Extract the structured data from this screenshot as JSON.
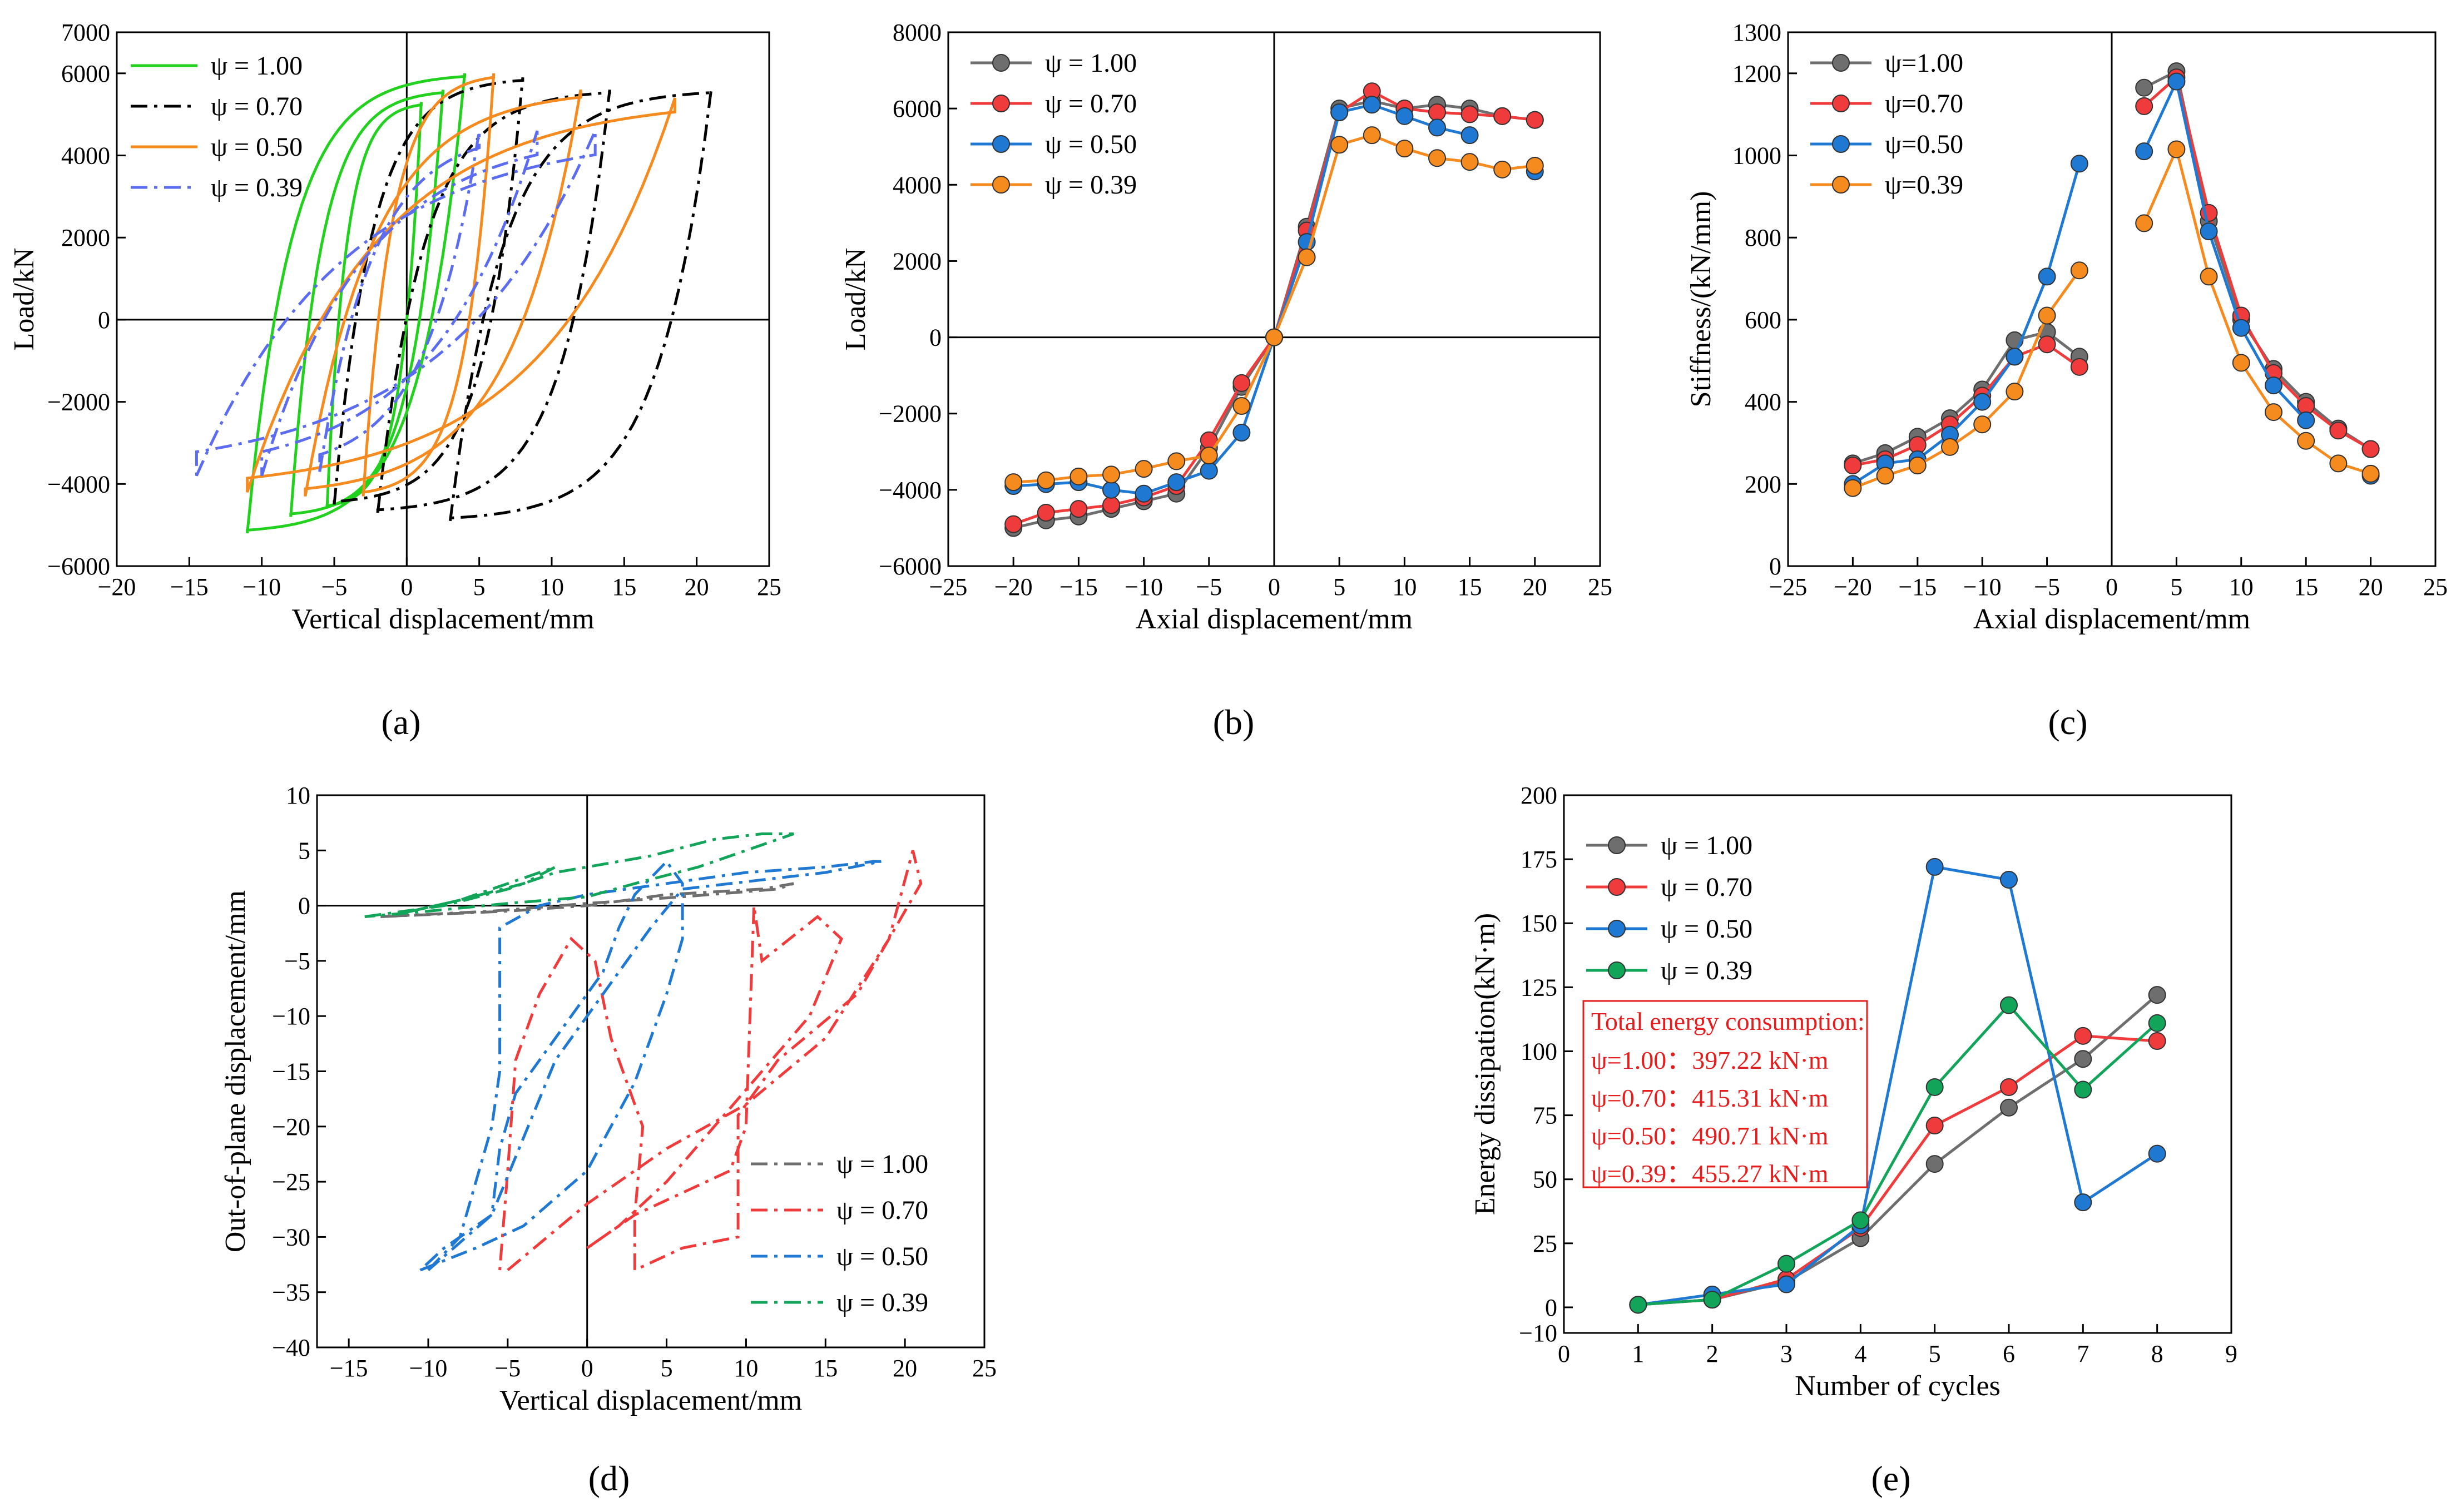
{
  "figure": {
    "panels": [
      "(a)",
      "(b)",
      "(c)",
      "(d)",
      "(e)"
    ]
  },
  "chart_data": [
    {
      "id": "a",
      "caption": "(a)",
      "type": "line",
      "title": "",
      "xlabel": "Vertical displacement/mm",
      "ylabel": "Load/kN",
      "xlim": [
        -20,
        25
      ],
      "ylim": [
        -6000,
        7000
      ],
      "xticks": [
        -20,
        -15,
        -10,
        -5,
        0,
        5,
        10,
        15,
        20,
        25
      ],
      "yticks": [
        -6000,
        -4000,
        -2000,
        0,
        2000,
        4000,
        6000,
        7000
      ],
      "legend_position": "top-left",
      "series": [
        {
          "name": "ψ = 1.00",
          "color": "#22d11e",
          "dash": "solid",
          "loops": [
            {
              "peak": 4.0,
              "pmax": 6000,
              "valley": -11.0,
              "pmin": -5200,
              "k": 1500
            },
            {
              "peak": 2.5,
              "pmax": 5600,
              "valley": -8.0,
              "pmin": -4800,
              "k": 1500
            },
            {
              "peak": 1.0,
              "pmax": 5300,
              "valley": -5.5,
              "pmin": -4600,
              "k": 1500
            }
          ]
        },
        {
          "name": "ψ = 0.70",
          "color": "#000000",
          "dash": "dashdot",
          "loops": [
            {
              "peak": 21.0,
              "pmax": 5600,
              "valley": 3.0,
              "pmin": -4900,
              "k": 1500
            },
            {
              "peak": 14.0,
              "pmax": 5600,
              "valley": -2.0,
              "pmin": -4700,
              "k": 1500
            },
            {
              "peak": 8.0,
              "pmax": 5900,
              "valley": -5.0,
              "pmin": -4500,
              "k": 1500
            }
          ]
        },
        {
          "name": "ψ = 0.50",
          "color": "#f58a1f",
          "dash": "solid",
          "loops": [
            {
              "peak": 18.5,
              "pmax": 5400,
              "valley": -11.0,
              "pmin": -4200,
              "k": 1000
            },
            {
              "peak": 12.0,
              "pmax": 5600,
              "valley": -7.0,
              "pmin": -4300,
              "k": 1200
            },
            {
              "peak": 6.0,
              "pmax": 6000,
              "valley": -3.0,
              "pmin": -4300,
              "k": 1400
            }
          ]
        },
        {
          "name": "ψ = 0.39",
          "color": "#5b6cf0",
          "dash": "dashdot",
          "loops": [
            {
              "peak": 13.0,
              "pmax": 4600,
              "valley": -14.5,
              "pmin": -3800,
              "k": 800
            },
            {
              "peak": 9.0,
              "pmax": 4600,
              "valley": -10.0,
              "pmin": -3800,
              "k": 800
            },
            {
              "peak": 5.0,
              "pmax": 4600,
              "valley": -6.0,
              "pmin": -3700,
              "k": 900
            }
          ]
        }
      ]
    },
    {
      "id": "b",
      "caption": "(b)",
      "type": "line",
      "title": "",
      "xlabel": "Axial displacement/mm",
      "ylabel": "Load/kN",
      "xlim": [
        -25,
        25
      ],
      "ylim": [
        -6000,
        8000
      ],
      "xticks": [
        -25,
        -20,
        -15,
        -10,
        -5,
        0,
        5,
        10,
        15,
        20,
        25
      ],
      "yticks": [
        -6000,
        -4000,
        -2000,
        0,
        2000,
        4000,
        6000,
        8000
      ],
      "legend_position": "top-left",
      "x": [
        -20,
        -17.5,
        -15,
        -12.5,
        -10,
        -7.5,
        -5,
        -2.5,
        0,
        2.5,
        5,
        7.5,
        10,
        12.5,
        15,
        17.5,
        20
      ],
      "series": [
        {
          "name": "ψ = 1.00",
          "color": "#6e6e6e",
          "values": [
            -5000,
            -4800,
            -4700,
            -4500,
            -4300,
            -4100,
            -2900,
            -1300,
            0,
            2900,
            6000,
            6200,
            6000,
            6100,
            6000,
            5800,
            5700
          ]
        },
        {
          "name": "ψ = 0.70",
          "color": "#ef3b3b",
          "values": [
            -4900,
            -4600,
            -4500,
            -4400,
            -4200,
            -3900,
            -2700,
            -1200,
            0,
            2800,
            5900,
            6450,
            6000,
            5900,
            5850,
            5800,
            5700
          ]
        },
        {
          "name": "ψ = 0.50",
          "color": "#1f78d1",
          "values": [
            -3900,
            -3850,
            -3800,
            -4000,
            -4100,
            -3800,
            -3500,
            -2500,
            0,
            2500,
            5900,
            6100,
            5800,
            5500,
            5300,
            null,
            4350
          ]
        },
        {
          "name": "ψ = 0.39",
          "color": "#f58a1f",
          "values": [
            -3800,
            -3750,
            -3650,
            -3600,
            -3450,
            -3250,
            -3100,
            -1800,
            0,
            2100,
            5050,
            5300,
            4950,
            4700,
            4600,
            4400,
            4500
          ]
        }
      ]
    },
    {
      "id": "c",
      "caption": "(c)",
      "type": "line",
      "title": "",
      "xlabel": "Axial displacement/mm",
      "ylabel": "Stiffness/(kN/mm)",
      "xlim": [
        -25,
        25
      ],
      "ylim": [
        0,
        1300
      ],
      "xticks": [
        -25,
        -20,
        -15,
        -10,
        -5,
        0,
        5,
        10,
        15,
        20,
        25
      ],
      "yticks": [
        0,
        200,
        400,
        600,
        800,
        1000,
        1200,
        1300
      ],
      "legend_position": "top-left",
      "x": [
        -20,
        -17.5,
        -15,
        -12.5,
        -10,
        -7.5,
        -5,
        -2.5,
        2.5,
        5,
        7.5,
        10,
        12.5,
        15,
        17.5,
        20
      ],
      "series": [
        {
          "name": "ψ=1.00",
          "color": "#6e6e6e",
          "values": [
            250,
            275,
            315,
            360,
            430,
            550,
            570,
            510,
            1165,
            1205,
            840,
            600,
            480,
            400,
            335,
            285
          ]
        },
        {
          "name": "ψ=0.70",
          "color": "#ef3b3b",
          "values": [
            245,
            260,
            295,
            345,
            415,
            510,
            540,
            485,
            1120,
            1190,
            860,
            610,
            470,
            390,
            330,
            285
          ]
        },
        {
          "name": "ψ=0.50",
          "color": "#1f78d1",
          "values": [
            200,
            250,
            260,
            320,
            400,
            510,
            705,
            980,
            1010,
            1180,
            815,
            580,
            440,
            355,
            null,
            220
          ]
        },
        {
          "name": "ψ=0.39",
          "color": "#f58a1f",
          "values": [
            190,
            220,
            245,
            290,
            345,
            425,
            610,
            720,
            835,
            1015,
            705,
            495,
            375,
            305,
            250,
            225
          ]
        }
      ]
    },
    {
      "id": "d",
      "caption": "(d)",
      "type": "line",
      "title": "",
      "xlabel": "Vertical displacement/mm",
      "ylabel": "Out-of-plane displacement/mm",
      "xlim": [
        -17,
        25
      ],
      "ylim": [
        -40,
        10
      ],
      "xticks": [
        -15,
        -10,
        -5,
        0,
        5,
        10,
        15,
        20,
        25
      ],
      "yticks": [
        -40,
        -35,
        -30,
        -25,
        -20,
        -15,
        -10,
        -5,
        0,
        5,
        10
      ],
      "legend_position": "bottom-right",
      "series": [
        {
          "name": "ψ = 1.00",
          "color": "#6e6e6e",
          "paths": [
            [
              [
                -13,
                -1
              ],
              [
                -5,
                -0.5
              ],
              [
                0,
                0
              ],
              [
                5,
                1
              ],
              [
                11,
                1.5
              ],
              [
                13,
                2
              ],
              [
                12,
                1.5
              ],
              [
                6,
                0.8
              ],
              [
                0,
                0.2
              ],
              [
                -6,
                -0.5
              ],
              [
                -13,
                -1
              ]
            ]
          ]
        },
        {
          "name": "ψ = 0.70",
          "color": "#ef3b3b",
          "paths": [
            [
              [
                -5,
                -33
              ],
              [
                -2.5,
                -30
              ],
              [
                0,
                -27
              ],
              [
                5,
                -22
              ],
              [
                10,
                -18
              ],
              [
                15,
                -12
              ],
              [
                19,
                -3
              ],
              [
                20.5,
                5
              ],
              [
                21,
                2
              ],
              [
                17,
                -8
              ],
              [
                12,
                -14
              ],
              [
                9.5,
                -19
              ],
              [
                9.5,
                -28
              ],
              [
                9.5,
                -30
              ],
              [
                6,
                -31
              ],
              [
                3,
                -33
              ],
              [
                3,
                -28
              ],
              [
                3.5,
                -20
              ],
              [
                1.5,
                -12
              ],
              [
                0.5,
                -5
              ],
              [
                -1,
                -3
              ],
              [
                -3,
                -8
              ],
              [
                -4.5,
                -14
              ],
              [
                -5,
                -24
              ],
              [
                -5.5,
                -33
              ]
            ],
            [
              [
                0,
                -31
              ],
              [
                2,
                -29
              ],
              [
                5,
                -25
              ],
              [
                8,
                -20
              ],
              [
                11,
                -15
              ],
              [
                14,
                -10
              ],
              [
                16,
                -3
              ],
              [
                14.5,
                -1
              ],
              [
                11,
                -5
              ],
              [
                10.5,
                0
              ],
              [
                10,
                -20
              ],
              [
                9,
                -24
              ],
              [
                6,
                -26
              ],
              [
                3,
                -28
              ],
              [
                0,
                -31
              ]
            ]
          ]
        },
        {
          "name": "ψ = 0.50",
          "color": "#1f78d1",
          "paths": [
            [
              [
                -10.5,
                -33
              ],
              [
                -7,
                -31
              ],
              [
                -4,
                -29
              ],
              [
                0,
                -24
              ],
              [
                3,
                -16
              ],
              [
                5,
                -8
              ],
              [
                6,
                -3
              ],
              [
                6,
                2
              ],
              [
                5,
                4
              ],
              [
                3,
                1
              ],
              [
                2,
                -2
              ],
              [
                1,
                -6
              ],
              [
                -1,
                -10
              ],
              [
                -3,
                -14
              ],
              [
                -4.5,
                -17
              ],
              [
                -5.5,
                -22
              ],
              [
                -6,
                -28
              ],
              [
                -9,
                -31
              ],
              [
                -10.5,
                -33
              ]
            ],
            [
              [
                -10,
                -33
              ],
              [
                -8,
                -30
              ],
              [
                -6,
                -20
              ],
              [
                -5.5,
                -15
              ],
              [
                -5.5,
                -2
              ],
              [
                -3,
                0
              ],
              [
                0,
                1
              ],
              [
                10,
                3
              ],
              [
                15,
                3.5
              ],
              [
                18,
                4
              ],
              [
                18.5,
                4
              ],
              [
                15,
                3
              ],
              [
                6,
                1.5
              ],
              [
                4,
                -2
              ],
              [
                1,
                -8
              ],
              [
                -2,
                -14
              ],
              [
                -6,
                -28
              ],
              [
                -10,
                -33
              ]
            ]
          ]
        },
        {
          "name": "ψ = 0.39",
          "color": "#12a55a",
          "paths": [
            [
              [
                -14,
                -1
              ],
              [
                -9,
                0
              ],
              [
                -5,
                1.5
              ],
              [
                -2,
                3
              ],
              [
                0,
                3.5
              ],
              [
                4,
                4.5
              ],
              [
                8,
                6
              ],
              [
                11,
                6.5
              ],
              [
                13,
                6.5
              ],
              [
                11,
                5.5
              ],
              [
                7,
                3.5
              ],
              [
                3,
                2
              ],
              [
                0,
                0.8
              ],
              [
                -5,
                0.2
              ],
              [
                -10,
                -0.5
              ],
              [
                -14,
                -1
              ]
            ],
            [
              [
                -12,
                -0.8
              ],
              [
                -8,
                0.5
              ],
              [
                -4,
                2.5
              ],
              [
                -2,
                3.5
              ],
              [
                -4,
                2
              ],
              [
                -8,
                0.5
              ],
              [
                -12,
                -0.8
              ]
            ]
          ]
        }
      ]
    },
    {
      "id": "e",
      "caption": "(e)",
      "type": "line",
      "title": "",
      "xlabel": "Number of cycles",
      "ylabel": "Energy dissipation(kN·m)",
      "xlim": [
        0,
        9
      ],
      "ylim": [
        -10,
        200
      ],
      "xticks": [
        0,
        1,
        2,
        3,
        4,
        5,
        6,
        7,
        8,
        9
      ],
      "yticks": [
        -10,
        0,
        25,
        50,
        75,
        100,
        125,
        150,
        175,
        200
      ],
      "legend_position": "top-left",
      "x": [
        1,
        2,
        3,
        4,
        5,
        6,
        7,
        8
      ],
      "series": [
        {
          "name": "ψ = 1.00",
          "color": "#6e6e6e",
          "values": [
            1,
            3,
            10,
            27,
            56,
            78,
            97,
            122
          ]
        },
        {
          "name": "ψ = 0.70",
          "color": "#ef3b3b",
          "values": [
            1,
            3,
            11,
            31,
            71,
            86,
            106,
            104
          ]
        },
        {
          "name": "ψ = 0.50",
          "color": "#1f78d1",
          "values": [
            1,
            5,
            9,
            32,
            172,
            167,
            41,
            60
          ]
        },
        {
          "name": "ψ = 0.39",
          "color": "#12a55a",
          "values": [
            1,
            3,
            17,
            34,
            86,
            118,
            85,
            111
          ]
        }
      ],
      "annotation": {
        "title": "Total energy consumption:",
        "lines": [
          "ψ=1.00：397.22 kN·m",
          "ψ=0.70：415.31 kN·m",
          "ψ=0.50：490.71 kN·m",
          "ψ=0.39：455.27 kN·m"
        ]
      }
    }
  ]
}
